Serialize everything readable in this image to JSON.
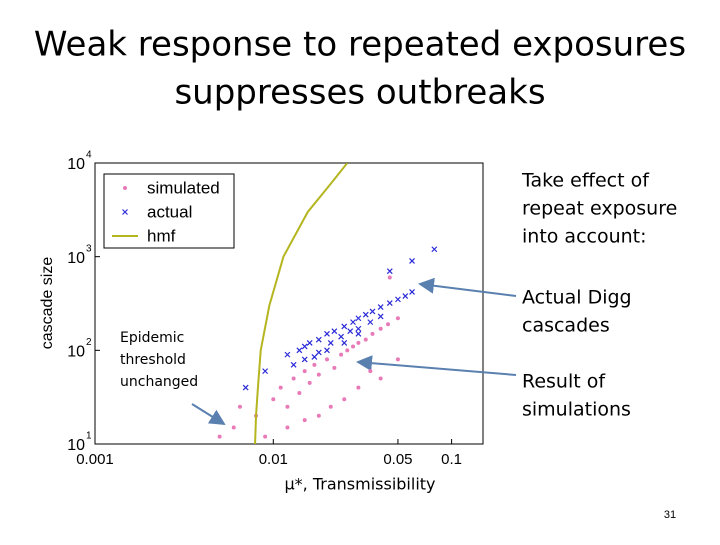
{
  "slide": {
    "title_lines": [
      "Weak response to repeated exposures",
      "suppresses outbreaks"
    ],
    "note_top": [
      "Take effect of",
      "repeat exposure",
      "into account:"
    ],
    "note_actual": [
      "Actual Digg",
      "cascades"
    ],
    "note_sim": [
      "Result of",
      "simulations"
    ],
    "note_left": [
      "Epidemic",
      "threshold",
      "unchanged"
    ],
    "page": "31"
  },
  "chart_data": {
    "type": "scatter",
    "x_label": "μ*, Transmissibility",
    "y_label": "cascade size",
    "xscale": "log",
    "yscale": "log",
    "xlim": [
      0.001,
      0.15
    ],
    "ylim": [
      10,
      10000
    ],
    "xticks": [
      0.001,
      0.01,
      0.05,
      0.1
    ],
    "yticks": [
      {
        "value": 10,
        "label": "10",
        "exponent": "1"
      },
      {
        "value": 100,
        "label": "10",
        "exponent": "2"
      },
      {
        "value": 1000,
        "label": "10",
        "exponent": "3"
      },
      {
        "value": 10000,
        "label": "10",
        "exponent": "4"
      }
    ],
    "legend": "upper left",
    "series": [
      {
        "name": "simulated",
        "color": "#e87ab8",
        "marker": "dot",
        "x": [
          0.01,
          0.011,
          0.012,
          0.013,
          0.014,
          0.015,
          0.016,
          0.017,
          0.018,
          0.02,
          0.022,
          0.024,
          0.026,
          0.028,
          0.03,
          0.033,
          0.036,
          0.04,
          0.044,
          0.05,
          0.006,
          0.008,
          0.009,
          0.012,
          0.015,
          0.018,
          0.021,
          0.025,
          0.03,
          0.035,
          0.04,
          0.05,
          0.045,
          0.005,
          0.0065
        ],
        "y": [
          30,
          40,
          25,
          50,
          35,
          60,
          45,
          70,
          55,
          80,
          65,
          90,
          100,
          110,
          120,
          130,
          150,
          170,
          190,
          220,
          15,
          20,
          12,
          15,
          18,
          20,
          25,
          30,
          40,
          60,
          50,
          80,
          600,
          12,
          25
        ]
      },
      {
        "name": "actual",
        "color": "#2a2ad8",
        "marker": "x",
        "x": [
          0.012,
          0.014,
          0.015,
          0.016,
          0.018,
          0.02,
          0.022,
          0.025,
          0.028,
          0.03,
          0.033,
          0.036,
          0.04,
          0.045,
          0.05,
          0.055,
          0.06,
          0.015,
          0.018,
          0.021,
          0.024,
          0.027,
          0.03,
          0.035,
          0.04,
          0.013,
          0.017,
          0.02,
          0.025,
          0.03,
          0.007,
          0.009,
          0.045,
          0.06,
          0.08
        ],
        "y": [
          90,
          100,
          110,
          120,
          130,
          150,
          160,
          180,
          200,
          220,
          240,
          260,
          290,
          320,
          350,
          380,
          420,
          80,
          95,
          120,
          140,
          160,
          170,
          200,
          230,
          70,
          85,
          100,
          120,
          150,
          40,
          60,
          700,
          900,
          1200
        ]
      },
      {
        "name": "hmf",
        "color": "#b5b520",
        "marker": "line",
        "x": [
          0.0079,
          0.008,
          0.0082,
          0.0085,
          0.0095,
          0.0114,
          0.0156,
          0.021,
          0.026
        ],
        "y": [
          10,
          20,
          40,
          100,
          300,
          1000,
          3000,
          6000,
          10000
        ]
      }
    ]
  }
}
